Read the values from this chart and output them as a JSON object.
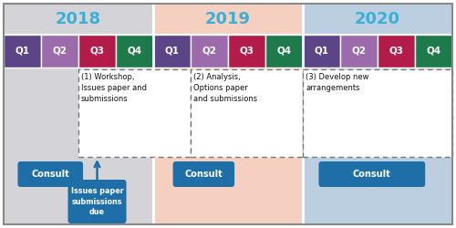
{
  "years": [
    "2018",
    "2019",
    "2020"
  ],
  "year_bg_colors": [
    "#d4d4d8",
    "#f5d0c0",
    "#bccfe0"
  ],
  "year_text_color": "#3ab0d8",
  "quarter_colors": {
    "Q1": "#5b4586",
    "Q2": "#9b6bac",
    "Q3": "#b31c4a",
    "Q4": "#1e7a4a"
  },
  "consult_color": "#1e6fa8",
  "consult_text": "Consult",
  "arrow_box_text": "Issues paper\nsubmissions\ndue",
  "phase_labels": [
    "(1) Workshop,\nIssues paper and\nsubmissions",
    "(2) Analysis,\nOptions paper\nand submissions",
    "(3) Develop new\narrangements"
  ],
  "fig_width": 5.0,
  "fig_height": 2.5,
  "dpi": 100
}
